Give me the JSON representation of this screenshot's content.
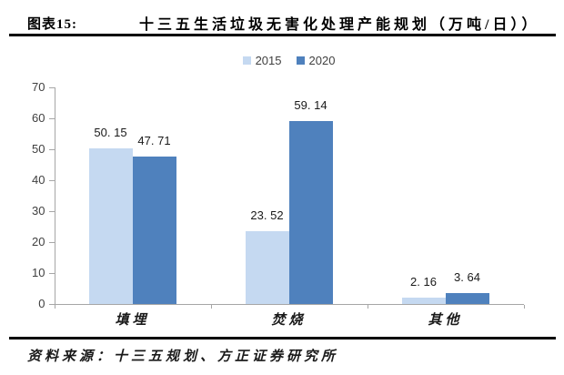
{
  "header": {
    "label": "图表15:",
    "title": "十三五生活垃圾无害化处理产能规划（万吨/日））"
  },
  "footer": {
    "source": "资料来源：十三五规划、方正证券研究所"
  },
  "colors": {
    "series_2015": "#c5d9f1",
    "series_2020": "#4f81bd",
    "axis": "#a6a6a6",
    "rule": "#000000",
    "text": "#1a1a1a"
  },
  "chart_data": {
    "type": "bar",
    "title": "十三五生活垃圾无害化处理产能规划（万吨/日））",
    "categories": [
      "填埋",
      "焚烧",
      "其他"
    ],
    "series": [
      {
        "name": "2015",
        "color": "#c5d9f1",
        "values": [
          50.15,
          23.52,
          2.16
        ],
        "labels": [
          "50. 15",
          "23. 52",
          "2. 16"
        ]
      },
      {
        "name": "2020",
        "color": "#4f81bd",
        "values": [
          47.71,
          59.14,
          3.64
        ],
        "labels": [
          "47. 71",
          "59. 14",
          "3. 64"
        ]
      }
    ],
    "xlabel": "",
    "ylabel": "",
    "ylim": [
      0,
      70
    ],
    "ytick_step": 10,
    "grid": false,
    "legend_position": "top-center"
  }
}
